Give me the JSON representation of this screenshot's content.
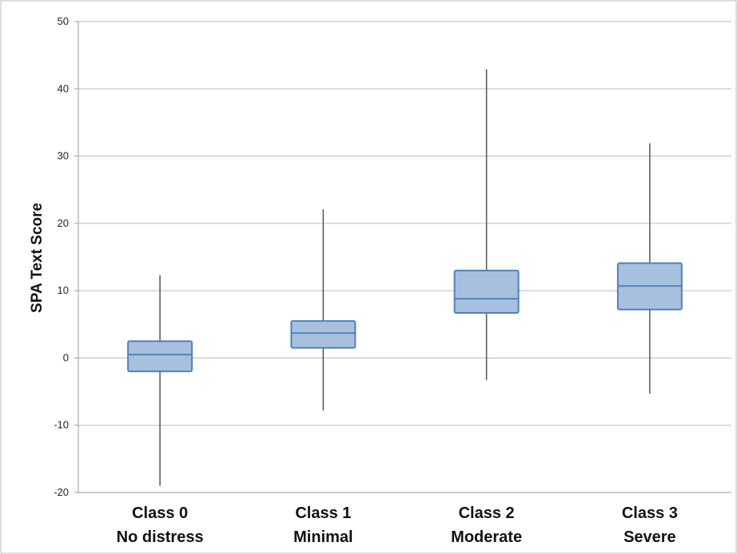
{
  "chart_data": {
    "type": "box",
    "title": "",
    "ylabel": "SPA Text Score",
    "xlabel": "",
    "ylim": [
      -20,
      50
    ],
    "yticks": [
      -20,
      -10,
      0,
      10,
      20,
      30,
      40,
      50
    ],
    "grid": true,
    "categories": [
      {
        "line1": "Class 0",
        "line2": "No distress"
      },
      {
        "line1": "Class 1",
        "line2": "Minimal"
      },
      {
        "line1": "Class 2",
        "line2": "Moderate"
      },
      {
        "line1": "Class 3",
        "line2": "Severe"
      }
    ],
    "boxes": [
      {
        "min": -19,
        "q1": -2,
        "median": 0.5,
        "q3": 2.5,
        "max": 12.3
      },
      {
        "min": -7.8,
        "q1": 1.5,
        "median": 3.7,
        "q3": 5.5,
        "max": 22.1
      },
      {
        "min": -3.3,
        "q1": 6.7,
        "median": 8.8,
        "q3": 13,
        "max": 42.9
      },
      {
        "min": -5.3,
        "q1": 7.2,
        "median": 10.7,
        "q3": 14.1,
        "max": 31.9
      }
    ],
    "colors": {
      "box_fill": "#a7c0de",
      "box_stroke": "#4f81bd",
      "whisker": "#555555",
      "grid": "#c8c8c8",
      "axis": "#999999"
    }
  }
}
